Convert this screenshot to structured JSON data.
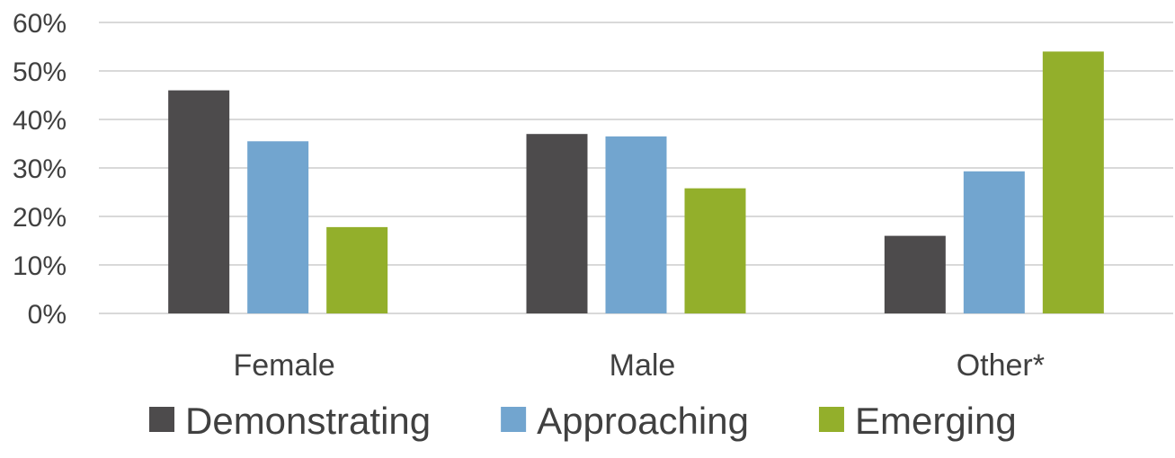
{
  "chart_data": {
    "type": "bar",
    "categories": [
      "Female",
      "Male",
      "Other*"
    ],
    "series": [
      {
        "name": "Demonstrating",
        "color": "#4d4b4c",
        "values": [
          46,
          37,
          16
        ]
      },
      {
        "name": "Approaching",
        "color": "#72a5cf",
        "values": [
          35.5,
          36.5,
          29.3
        ]
      },
      {
        "name": "Emerging",
        "color": "#93af2b",
        "values": [
          17.8,
          25.8,
          54
        ]
      }
    ],
    "ylim": [
      0,
      60
    ],
    "yticks": [
      0,
      10,
      20,
      30,
      40,
      50,
      60
    ],
    "ytick_labels": [
      "0%",
      "10%",
      "20%",
      "30%",
      "40%",
      "50%",
      "60%"
    ],
    "grid": true,
    "legend_position": "bottom"
  }
}
